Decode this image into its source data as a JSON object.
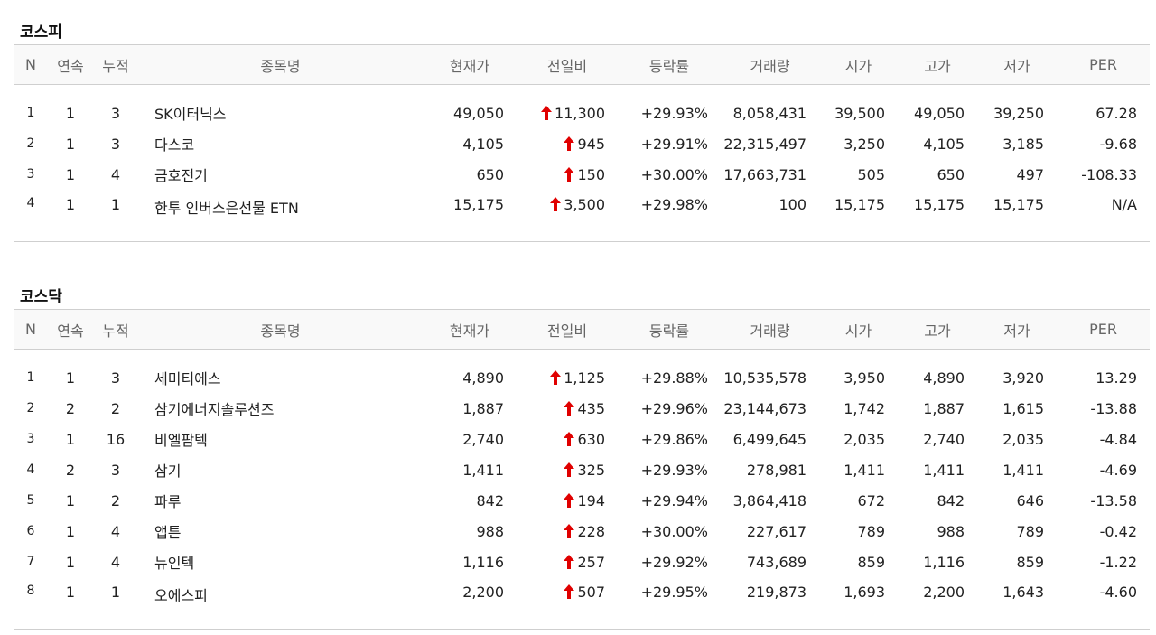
{
  "headers": {
    "n": "N",
    "streak": "연속",
    "cumulative": "누적",
    "name": "종목명",
    "price": "현재가",
    "change": "전일비",
    "rate": "등락률",
    "volume": "거래량",
    "open": "시가",
    "high": "고가",
    "low": "저가",
    "per": "PER"
  },
  "up_color": "#e00000",
  "change_icon": "up-arrow-icon",
  "kospi": {
    "title": "코스피",
    "rows": [
      {
        "n": "1",
        "streak": "1",
        "cum": "3",
        "name": "SK이터닉스",
        "price": "49,050",
        "change": "11,300",
        "rate": "+29.93%",
        "volume": "8,058,431",
        "open": "39,500",
        "high": "49,050",
        "low": "39,250",
        "per": "67.28"
      },
      {
        "n": "2",
        "streak": "1",
        "cum": "3",
        "name": "다스코",
        "price": "4,105",
        "change": "945",
        "rate": "+29.91%",
        "volume": "22,315,497",
        "open": "3,250",
        "high": "4,105",
        "low": "3,185",
        "per": "-9.68"
      },
      {
        "n": "3",
        "streak": "1",
        "cum": "4",
        "name": "금호전기",
        "price": "650",
        "change": "150",
        "rate": "+30.00%",
        "volume": "17,663,731",
        "open": "505",
        "high": "650",
        "low": "497",
        "per": "-108.33"
      },
      {
        "n": "4",
        "streak": "1",
        "cum": "1",
        "name": "한투 인버스은선물 ETN",
        "price": "15,175",
        "change": "3,500",
        "rate": "+29.98%",
        "volume": "100",
        "open": "15,175",
        "high": "15,175",
        "low": "15,175",
        "per": "N/A"
      }
    ]
  },
  "kosdaq": {
    "title": "코스닥",
    "rows": [
      {
        "n": "1",
        "streak": "1",
        "cum": "3",
        "name": "세미티에스",
        "price": "4,890",
        "change": "1,125",
        "rate": "+29.88%",
        "volume": "10,535,578",
        "open": "3,950",
        "high": "4,890",
        "low": "3,920",
        "per": "13.29"
      },
      {
        "n": "2",
        "streak": "2",
        "cum": "2",
        "name": "삼기에너지솔루션즈",
        "price": "1,887",
        "change": "435",
        "rate": "+29.96%",
        "volume": "23,144,673",
        "open": "1,742",
        "high": "1,887",
        "low": "1,615",
        "per": "-13.88"
      },
      {
        "n": "3",
        "streak": "1",
        "cum": "16",
        "name": "비엘팜텍",
        "price": "2,740",
        "change": "630",
        "rate": "+29.86%",
        "volume": "6,499,645",
        "open": "2,035",
        "high": "2,740",
        "low": "2,035",
        "per": "-4.84"
      },
      {
        "n": "4",
        "streak": "2",
        "cum": "3",
        "name": "삼기",
        "price": "1,411",
        "change": "325",
        "rate": "+29.93%",
        "volume": "278,981",
        "open": "1,411",
        "high": "1,411",
        "low": "1,411",
        "per": "-4.69"
      },
      {
        "n": "5",
        "streak": "1",
        "cum": "2",
        "name": "파루",
        "price": "842",
        "change": "194",
        "rate": "+29.94%",
        "volume": "3,864,418",
        "open": "672",
        "high": "842",
        "low": "646",
        "per": "-13.58"
      },
      {
        "n": "6",
        "streak": "1",
        "cum": "4",
        "name": "앱튼",
        "price": "988",
        "change": "228",
        "rate": "+30.00%",
        "volume": "227,617",
        "open": "789",
        "high": "988",
        "low": "789",
        "per": "-0.42"
      },
      {
        "n": "7",
        "streak": "1",
        "cum": "4",
        "name": "뉴인텍",
        "price": "1,116",
        "change": "257",
        "rate": "+29.92%",
        "volume": "743,689",
        "open": "859",
        "high": "1,116",
        "low": "859",
        "per": "-1.22"
      },
      {
        "n": "8",
        "streak": "1",
        "cum": "1",
        "name": "오에스피",
        "price": "2,200",
        "change": "507",
        "rate": "+29.95%",
        "volume": "219,873",
        "open": "1,693",
        "high": "2,200",
        "low": "1,643",
        "per": "-4.60"
      }
    ]
  }
}
